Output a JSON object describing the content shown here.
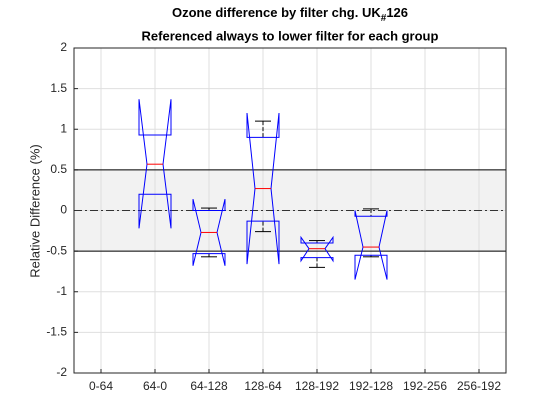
{
  "chart_data": {
    "type": "boxplot",
    "title": [
      "Ozone difference by filter chg. UK",
      "#",
      "126"
    ],
    "subtitle": "Referenced always to lower filter for each group",
    "ylabel": "Relative Difference (%)",
    "categories": [
      "0-64",
      "64-0",
      "64-128",
      "128-64",
      "128-192",
      "192-128",
      "192-256",
      "256-192"
    ],
    "boxes": [
      null,
      {
        "q1": 0.2,
        "q3": 0.93,
        "median": 0.57,
        "notch_low": -0.22,
        "notch_high": 1.37,
        "whisker_low": null,
        "whisker_high": null
      },
      {
        "q1": -0.53,
        "q3": 0.0,
        "median": -0.27,
        "notch_low": -0.68,
        "notch_high": 0.14,
        "whisker_low": -0.57,
        "whisker_high": 0.03
      },
      {
        "q1": -0.13,
        "q3": 0.9,
        "median": 0.27,
        "notch_low": -0.66,
        "notch_high": 1.2,
        "whisker_low": -0.26,
        "whisker_high": 1.1
      },
      {
        "q1": -0.58,
        "q3": -0.4,
        "median": -0.47,
        "notch_low": -0.62,
        "notch_high": -0.33,
        "whisker_low": -0.7,
        "whisker_high": -0.37
      },
      {
        "q1": -0.55,
        "q3": -0.07,
        "median": -0.45,
        "notch_low": -0.85,
        "notch_high": 0.0,
        "whisker_low": -0.57,
        "whisker_high": 0.02
      },
      null,
      null
    ],
    "box_color": "#0000ff",
    "median_color": "#ff0000",
    "whisker_color": "#000000",
    "band": [
      -0.5,
      0.5
    ],
    "band_color": "#f2f2f2",
    "refline": 0,
    "ylim": [
      -2,
      2
    ],
    "yticks": [
      -2,
      -1.5,
      -1,
      -0.5,
      0,
      0.5,
      1,
      1.5,
      2
    ],
    "grid": true
  }
}
